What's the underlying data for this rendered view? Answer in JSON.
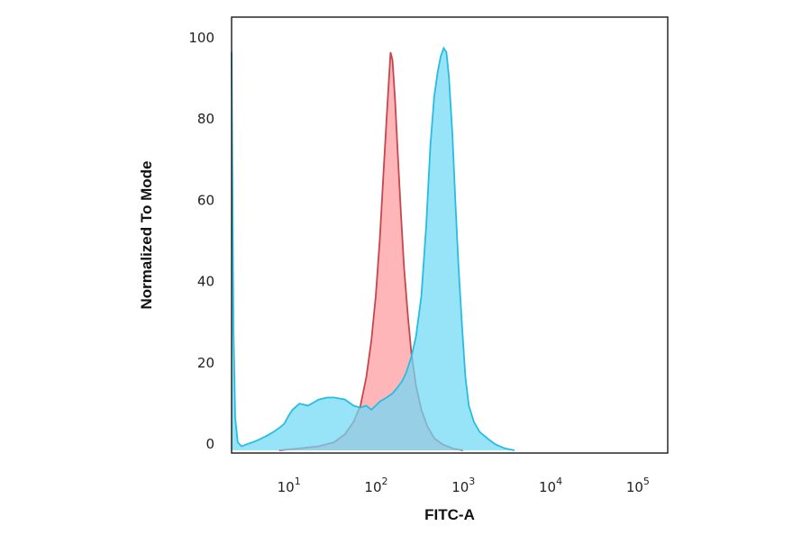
{
  "chart_data": {
    "type": "area",
    "title": "",
    "xlabel": "FITC-A",
    "ylabel": "Normalized To Mode",
    "xscale": "log",
    "ylim": [
      0,
      100
    ],
    "yticks": [
      0,
      20,
      40,
      60,
      80,
      100
    ],
    "ytick_labels": [
      "0",
      "20",
      "40",
      "60",
      "80",
      "100"
    ],
    "xticks": [
      10,
      100,
      1000,
      10000,
      100000
    ],
    "xtick_labels": [
      {
        "base": "10",
        "exp": "1"
      },
      {
        "base": "10",
        "exp": "2"
      },
      {
        "base": "10",
        "exp": "3"
      },
      {
        "base": "10",
        "exp": "4"
      },
      {
        "base": "10",
        "exp": "5"
      }
    ],
    "grid": false,
    "series": [
      {
        "color": "#ff9a9e",
        "stroke": "#c9454d",
        "points": [
          [
            7,
            0
          ],
          [
            10,
            0.3
          ],
          [
            20,
            1
          ],
          [
            30,
            2
          ],
          [
            40,
            4
          ],
          [
            50,
            7
          ],
          [
            60,
            11
          ],
          [
            70,
            18
          ],
          [
            80,
            27
          ],
          [
            90,
            38
          ],
          [
            100,
            52
          ],
          [
            110,
            68
          ],
          [
            120,
            82
          ],
          [
            128,
            92
          ],
          [
            133,
            98
          ],
          [
            140,
            96
          ],
          [
            150,
            86
          ],
          [
            160,
            74
          ],
          [
            175,
            58
          ],
          [
            190,
            45
          ],
          [
            210,
            33
          ],
          [
            230,
            24
          ],
          [
            260,
            16
          ],
          [
            300,
            10
          ],
          [
            350,
            6
          ],
          [
            420,
            3
          ],
          [
            520,
            1.5
          ],
          [
            700,
            0.4
          ],
          [
            900,
            0
          ]
        ]
      },
      {
        "color": "#6fd9f6",
        "stroke": "#27bde2",
        "points": [
          [
            2,
            98
          ],
          [
            2.05,
            65
          ],
          [
            2.1,
            30
          ],
          [
            2.2,
            8
          ],
          [
            2.35,
            2
          ],
          [
            2.6,
            1
          ],
          [
            3,
            1.5
          ],
          [
            3.5,
            2
          ],
          [
            4,
            2.5
          ],
          [
            5,
            3.5
          ],
          [
            6,
            4.5
          ],
          [
            7,
            5.5
          ],
          [
            8,
            6.5
          ],
          [
            9,
            8.5
          ],
          [
            10,
            10
          ],
          [
            12,
            11.5
          ],
          [
            15,
            11
          ],
          [
            20,
            12.5
          ],
          [
            25,
            13
          ],
          [
            30,
            13
          ],
          [
            40,
            12.5
          ],
          [
            50,
            11
          ],
          [
            60,
            10.5
          ],
          [
            70,
            11
          ],
          [
            80,
            10
          ],
          [
            90,
            11
          ],
          [
            100,
            12
          ],
          [
            120,
            13
          ],
          [
            140,
            14
          ],
          [
            160,
            15.5
          ],
          [
            180,
            17
          ],
          [
            200,
            19
          ],
          [
            230,
            23
          ],
          [
            260,
            28
          ],
          [
            300,
            38
          ],
          [
            340,
            55
          ],
          [
            380,
            75
          ],
          [
            420,
            87
          ],
          [
            460,
            93
          ],
          [
            500,
            97
          ],
          [
            540,
            99
          ],
          [
            580,
            98
          ],
          [
            620,
            92
          ],
          [
            680,
            78
          ],
          [
            740,
            60
          ],
          [
            800,
            45
          ],
          [
            880,
            30
          ],
          [
            960,
            18
          ],
          [
            1050,
            11
          ],
          [
            1200,
            7
          ],
          [
            1400,
            4.5
          ],
          [
            1700,
            3
          ],
          [
            2100,
            1.5
          ],
          [
            2700,
            0.5
          ],
          [
            3500,
            0
          ]
        ]
      }
    ]
  }
}
